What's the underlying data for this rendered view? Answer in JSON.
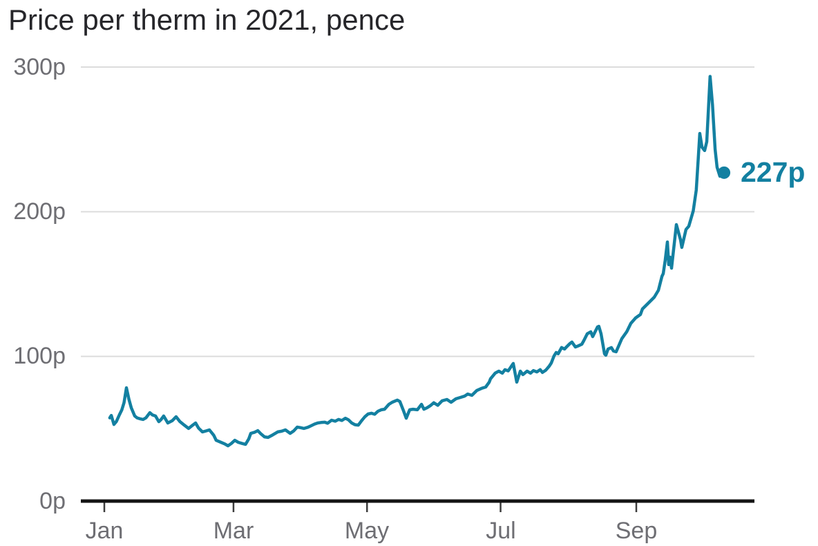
{
  "chart_data": {
    "type": "line",
    "title": "Price per therm in 2021, pence",
    "unit": "pence per therm",
    "xlabel": "",
    "ylabel": "",
    "ylim": [
      0,
      300
    ],
    "grid": "horizontal",
    "colors": {
      "line": "#1380a1",
      "gridline": "#dcdcdc",
      "axis": "#141414",
      "tick_mark": "#3d3d3d",
      "tick_label": "#6e6e73",
      "title": "#26262a",
      "end_label": "#1380a1"
    },
    "y_ticks": [
      {
        "value": 300,
        "label": "300p"
      },
      {
        "value": 200,
        "label": "200p"
      },
      {
        "value": 100,
        "label": "100p"
      },
      {
        "value": 0,
        "label": "0p"
      }
    ],
    "x_ticks": [
      {
        "day": 0,
        "label": "Jan"
      },
      {
        "day": 59,
        "label": "Mar"
      },
      {
        "day": 120,
        "label": "May"
      },
      {
        "day": 181,
        "label": "Jul"
      },
      {
        "day": 243,
        "label": "Sep"
      }
    ],
    "end_point": {
      "day": 283.1,
      "value": 227,
      "label": "227p"
    },
    "series": [
      {
        "name": "UK wholesale gas price, pence per therm (days since 1 Jan 2021, pence)",
        "points": [
          [
            2.5,
            57.5
          ],
          [
            3.2,
            59.2
          ],
          [
            4.4,
            53
          ],
          [
            5.5,
            55
          ],
          [
            6.9,
            59.7
          ],
          [
            8,
            63
          ],
          [
            9,
            68
          ],
          [
            10.1,
            78.3
          ],
          [
            11.2,
            70.5
          ],
          [
            12.3,
            64.5
          ],
          [
            13.9,
            58.8
          ],
          [
            15,
            57.5
          ],
          [
            16.5,
            56.8
          ],
          [
            17.7,
            56.4
          ],
          [
            19,
            57.5
          ],
          [
            20.8,
            61.1
          ],
          [
            22,
            59.5
          ],
          [
            23.4,
            58.8
          ],
          [
            24.9,
            54.9
          ],
          [
            26,
            56.5
          ],
          [
            27.1,
            58.8
          ],
          [
            29,
            54
          ],
          [
            31,
            55.5
          ],
          [
            32.8,
            58.3
          ],
          [
            34.5,
            55
          ],
          [
            36.5,
            52.5
          ],
          [
            38.5,
            50.2
          ],
          [
            40,
            52
          ],
          [
            41.7,
            54
          ],
          [
            43,
            50.5
          ],
          [
            44.8,
            47.8
          ],
          [
            46.5,
            48.5
          ],
          [
            48,
            49.2
          ],
          [
            50,
            45.5
          ],
          [
            51.1,
            42
          ],
          [
            53.3,
            40.6
          ],
          [
            55,
            39.5
          ],
          [
            56.5,
            38.2
          ],
          [
            58,
            39.8
          ],
          [
            59.6,
            42
          ],
          [
            61.2,
            40.6
          ],
          [
            63,
            39.8
          ],
          [
            64.5,
            39.2
          ],
          [
            66,
            43
          ],
          [
            66.9,
            46.8
          ],
          [
            68.5,
            47.5
          ],
          [
            70.1,
            48.7
          ],
          [
            71.5,
            46.5
          ],
          [
            73.2,
            44.4
          ],
          [
            74.8,
            44
          ],
          [
            77,
            45.8
          ],
          [
            79.2,
            47.8
          ],
          [
            81,
            48.3
          ],
          [
            82.7,
            49.2
          ],
          [
            84.9,
            46.8
          ],
          [
            86.5,
            48.5
          ],
          [
            88.1,
            51.1
          ],
          [
            89.5,
            50.8
          ],
          [
            91.2,
            50.2
          ],
          [
            93,
            51
          ],
          [
            94.4,
            52
          ],
          [
            96,
            53.2
          ],
          [
            97.5,
            54
          ],
          [
            99,
            54.3
          ],
          [
            100.7,
            54.5
          ],
          [
            102,
            53.8
          ],
          [
            103.8,
            55.9
          ],
          [
            105.5,
            55.2
          ],
          [
            107,
            56.4
          ],
          [
            108.5,
            55.7
          ],
          [
            110.1,
            57.3
          ],
          [
            111.5,
            56.2
          ],
          [
            113,
            54
          ],
          [
            114.5,
            52.8
          ],
          [
            116,
            52.5
          ],
          [
            117.5,
            55.5
          ],
          [
            119,
            58.3
          ],
          [
            120.5,
            60.2
          ],
          [
            122,
            60.7
          ],
          [
            123.5,
            60
          ],
          [
            125,
            62.1
          ],
          [
            126.5,
            63.1
          ],
          [
            128,
            63.5
          ],
          [
            130,
            66.9
          ],
          [
            131.5,
            68.3
          ],
          [
            133.8,
            69.8
          ],
          [
            135,
            68.8
          ],
          [
            136.5,
            63.1
          ],
          [
            137.9,
            57.3
          ],
          [
            139.5,
            63.1
          ],
          [
            141,
            63.5
          ],
          [
            143,
            63.1
          ],
          [
            144.9,
            66.9
          ],
          [
            146,
            63.5
          ],
          [
            147.4,
            64.5
          ],
          [
            149,
            66
          ],
          [
            150.5,
            68
          ],
          [
            152.3,
            66.2
          ],
          [
            154.3,
            69.3
          ],
          [
            156.5,
            70.2
          ],
          [
            158.4,
            68.3
          ],
          [
            160.6,
            70.7
          ],
          [
            162.8,
            71.7
          ],
          [
            164.5,
            72.5
          ],
          [
            166,
            74
          ],
          [
            167.9,
            73.1
          ],
          [
            170.1,
            76.4
          ],
          [
            172.3,
            77.9
          ],
          [
            174.2,
            78.8
          ],
          [
            175.8,
            82.2
          ],
          [
            176.4,
            84.5
          ],
          [
            178.6,
            88.5
          ],
          [
            180.2,
            89.8
          ],
          [
            181.8,
            88.4
          ],
          [
            183,
            90.8
          ],
          [
            184.5,
            90
          ],
          [
            186.8,
            95.1
          ],
          [
            188.4,
            82.2
          ],
          [
            190,
            89.8
          ],
          [
            191.2,
            87.4
          ],
          [
            193.1,
            89.8
          ],
          [
            194.7,
            88.4
          ],
          [
            196,
            90.2
          ],
          [
            197.6,
            89.3
          ],
          [
            199.1,
            90.8
          ],
          [
            200.1,
            88.9
          ],
          [
            201.6,
            90.4
          ],
          [
            203.2,
            93.2
          ],
          [
            204.2,
            95.5
          ],
          [
            205.4,
            100.3
          ],
          [
            206.4,
            102.7
          ],
          [
            207.3,
            101.8
          ],
          [
            208.9,
            106.1
          ],
          [
            210.2,
            105.1
          ],
          [
            211.1,
            106.5
          ],
          [
            212.7,
            108.9
          ],
          [
            213.6,
            109.9
          ],
          [
            215.2,
            106.5
          ],
          [
            216.5,
            107.3
          ],
          [
            218.1,
            108.4
          ],
          [
            219,
            110.8
          ],
          [
            220.6,
            115.6
          ],
          [
            222.2,
            117
          ],
          [
            223.1,
            113.7
          ],
          [
            225.3,
            120.4
          ],
          [
            225.9,
            120.8
          ],
          [
            226.9,
            115.6
          ],
          [
            228.5,
            101.8
          ],
          [
            229.1,
            100.8
          ],
          [
            230.1,
            105.1
          ],
          [
            231.6,
            106.1
          ],
          [
            232.6,
            103.7
          ],
          [
            233.8,
            103.2
          ],
          [
            236.4,
            112.3
          ],
          [
            238.6,
            117
          ],
          [
            240.5,
            122.8
          ],
          [
            242.7,
            126.6
          ],
          [
            244.9,
            129
          ],
          [
            245.8,
            132.8
          ],
          [
            249,
            137.6
          ],
          [
            251.2,
            140.9
          ],
          [
            253.1,
            145.7
          ],
          [
            254.7,
            155.3
          ],
          [
            255.3,
            157.2
          ],
          [
            256.2,
            166.3
          ],
          [
            257.2,
            179.1
          ],
          [
            257.8,
            163.4
          ],
          [
            258.4,
            168.6
          ],
          [
            259.1,
            161
          ],
          [
            261.3,
            191.1
          ],
          [
            263.2,
            180.6
          ],
          [
            263.8,
            175.3
          ],
          [
            265.7,
            187.7
          ],
          [
            267,
            190
          ],
          [
            269,
            200.5
          ],
          [
            270.4,
            215
          ],
          [
            271.3,
            237
          ],
          [
            272,
            254.1
          ],
          [
            273,
            244.6
          ],
          [
            274.2,
            242.3
          ],
          [
            275.2,
            248.4
          ],
          [
            276.7,
            293.5
          ],
          [
            277.8,
            273.8
          ],
          [
            279,
            243
          ],
          [
            279.9,
            230.8
          ],
          [
            281.2,
            224.5
          ],
          [
            282.2,
            226
          ],
          [
            283.1,
            227
          ]
        ]
      }
    ]
  }
}
